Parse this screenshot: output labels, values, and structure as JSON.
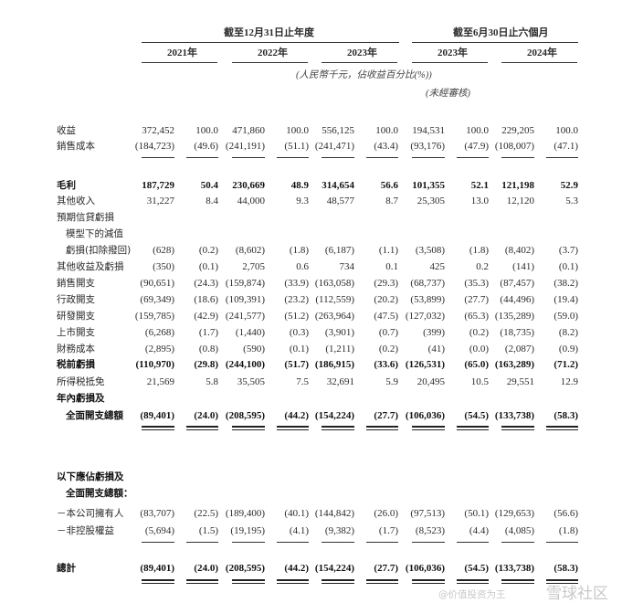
{
  "header": {
    "full_year_group": "截至12月31日止年度",
    "half_year_group": "截至6月30日止六個月",
    "years": [
      "2021年",
      "2022年",
      "2023年",
      "2023年",
      "2024年"
    ],
    "unit_note": "(人民幣千元，佔收益百分比(%))",
    "unaudited_note": "(未經審核)"
  },
  "rows": [
    {
      "label": "收益",
      "values": [
        "372,452",
        "100.0",
        "471,860",
        "100.0",
        "556,125",
        "100.0",
        "194,531",
        "100.0",
        "229,205",
        "100.0"
      ]
    },
    {
      "label": "銷售成本",
      "values": [
        "(184,723)",
        "(49.6)",
        "(241,191)",
        "(51.1)",
        "(241,471)",
        "(43.4)",
        "(93,176)",
        "(47.9)",
        "(108,007)",
        "(47.1)"
      ]
    },
    {
      "label": "毛利",
      "bold": true,
      "values": [
        "187,729",
        "50.4",
        "230,669",
        "48.9",
        "314,654",
        "56.6",
        "101,355",
        "52.1",
        "121,198",
        "52.9"
      ]
    },
    {
      "label": "其他收入",
      "values": [
        "31,227",
        "8.4",
        "44,000",
        "9.3",
        "48,577",
        "8.7",
        "25,305",
        "13.0",
        "12,120",
        "5.3"
      ]
    },
    {
      "label": "預期信貸虧損",
      "values": []
    },
    {
      "label": "模型下的減值",
      "indent": true,
      "values": []
    },
    {
      "label": "虧損(扣除撥回)",
      "indent": true,
      "values": [
        "(628)",
        "(0.2)",
        "(8,602)",
        "(1.8)",
        "(6,187)",
        "(1.1)",
        "(3,508)",
        "(1.8)",
        "(8,402)",
        "(3.7)"
      ]
    },
    {
      "label": "其他收益及虧損",
      "values": [
        "(350)",
        "(0.1)",
        "2,705",
        "0.6",
        "734",
        "0.1",
        "425",
        "0.2",
        "(141)",
        "(0.1)"
      ]
    },
    {
      "label": "銷售開支",
      "values": [
        "(90,651)",
        "(24.3)",
        "(159,874)",
        "(33.9)",
        "(163,058)",
        "(29.3)",
        "(68,737)",
        "(35.3)",
        "(87,457)",
        "(38.2)"
      ]
    },
    {
      "label": "行政開支",
      "values": [
        "(69,349)",
        "(18.6)",
        "(109,391)",
        "(23.2)",
        "(112,559)",
        "(20.2)",
        "(53,899)",
        "(27.7)",
        "(44,496)",
        "(19.4)"
      ]
    },
    {
      "label": "研發開支",
      "values": [
        "(159,785)",
        "(42.9)",
        "(241,577)",
        "(51.2)",
        "(263,964)",
        "(47.5)",
        "(127,032)",
        "(65.3)",
        "(135,289)",
        "(59.0)"
      ]
    },
    {
      "label": "上市開支",
      "values": [
        "(6,268)",
        "(1.7)",
        "(1,440)",
        "(0.3)",
        "(3,901)",
        "(0.7)",
        "(399)",
        "(0.2)",
        "(18,735)",
        "(8.2)"
      ]
    },
    {
      "label": "財務成本",
      "values": [
        "(2,895)",
        "(0.8)",
        "(590)",
        "(0.1)",
        "(1,211)",
        "(0.2)",
        "(41)",
        "(0.0)",
        "(2,087)",
        "(0.9)"
      ]
    },
    {
      "label": "税前虧損",
      "bold": true,
      "values": [
        "(110,970)",
        "(29.8)",
        "(244,100)",
        "(51.7)",
        "(186,915)",
        "(33.6)",
        "(126,531)",
        "(65.0)",
        "(163,289)",
        "(71.2)"
      ]
    },
    {
      "label": "所得税抵免",
      "values": [
        "21,569",
        "5.8",
        "35,505",
        "7.5",
        "32,691",
        "5.9",
        "20,495",
        "10.5",
        "29,551",
        "12.9"
      ]
    },
    {
      "label": "年內虧損及",
      "bold": true,
      "values": []
    },
    {
      "label": "全面開支總額",
      "bold": true,
      "indent": true,
      "values": [
        "(89,401)",
        "(24.0)",
        "(208,595)",
        "(44.2)",
        "(154,224)",
        "(27.7)",
        "(106,036)",
        "(54.5)",
        "(133,738)",
        "(58.3)"
      ]
    },
    {
      "label": "以下應佔虧損及",
      "bold": true,
      "values": []
    },
    {
      "label": "全面開支總額：",
      "bold": true,
      "indent": true,
      "values": []
    },
    {
      "label": "－本公司擁有人",
      "values": [
        "(83,707)",
        "(22.5)",
        "(189,400)",
        "(40.1)",
        "(144,842)",
        "(26.0)",
        "(97,513)",
        "(50.1)",
        "(129,653)",
        "(56.6)"
      ]
    },
    {
      "label": "－非控股權益",
      "values": [
        "(5,694)",
        "(1.5)",
        "(19,195)",
        "(4.1)",
        "(9,382)",
        "(1.7)",
        "(8,523)",
        "(4.4)",
        "(4,085)",
        "(1.8)"
      ]
    },
    {
      "label": "總計",
      "bold": true,
      "values": [
        "(89,401)",
        "(24.0)",
        "(208,595)",
        "(44.2)",
        "(154,224)",
        "(27.7)",
        "(106,036)",
        "(54.5)",
        "(133,738)",
        "(58.3)"
      ]
    }
  ],
  "watermark": {
    "logo_text": "雪球社区",
    "handle": "@价值投资为王"
  }
}
